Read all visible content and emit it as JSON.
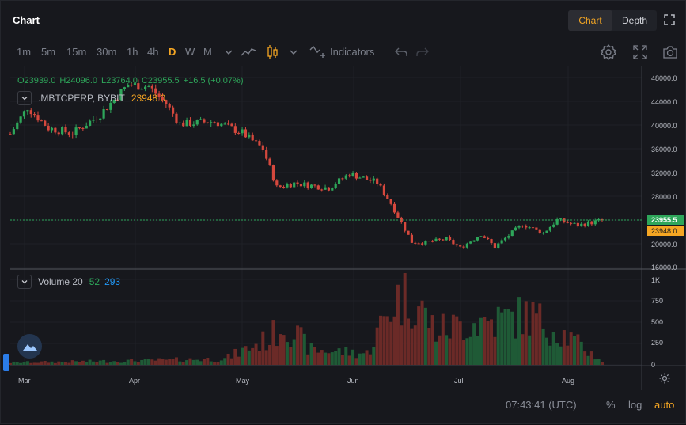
{
  "header": {
    "title": "Chart",
    "tabs": [
      "Chart",
      "Depth"
    ],
    "active_tab": "Chart"
  },
  "toolbar": {
    "timeframes": [
      "1m",
      "5m",
      "15m",
      "30m",
      "1h",
      "4h",
      "D",
      "W",
      "M"
    ],
    "active_timeframe": "D",
    "indicators_label": "Indicators",
    "icons": [
      "chevron-down-icon",
      "line-chart-icon",
      "candles-icon",
      "chevron-down-icon",
      "indicators-icon",
      "undo-icon",
      "redo-icon",
      "settings-icon",
      "fullscreen-icon",
      "camera-icon"
    ]
  },
  "legend": {
    "o": "O23939.0",
    "h": "H24096.0",
    "l": "L23764.0",
    "c": "C23955.5",
    "change": "+16.5 (+0.07%)",
    "symbol": ".MBTCPERP, BYBIT",
    "last": "23948.0"
  },
  "volume_legend": {
    "name": "Volume 20",
    "a": "52",
    "b": "293"
  },
  "price_axis": {
    "labels": [
      "48000.0",
      "44000.0",
      "40000.0",
      "36000.0",
      "32000.0",
      "28000.0",
      "20000.0",
      "16000.0"
    ],
    "badge_green": "23955.5",
    "badge_orange": "23948.0"
  },
  "volume_axis": {
    "labels": [
      "1K",
      "750",
      "500",
      "250",
      "0"
    ]
  },
  "time_axis": {
    "labels": [
      "Mar",
      "Apr",
      "May",
      "Jun",
      "Jul",
      "Aug"
    ]
  },
  "footer": {
    "clock": "07:43:41 (UTC)",
    "percent": "%",
    "log": "log",
    "auto": "auto"
  },
  "colors": {
    "up": "#2ea65a",
    "down": "#d5483d",
    "accent": "#f5a623",
    "blue": "#2196f3"
  },
  "chart_data": {
    "type": "candlestick",
    "x_range": [
      "Feb 22",
      "Aug 12"
    ],
    "y_range": [
      16000,
      49000
    ],
    "last_price": 23955.5,
    "anchors": [
      {
        "date": "Feb 22",
        "close": 38500
      },
      {
        "date": "Feb 27",
        "close": 43000
      },
      {
        "date": "Mar 05",
        "close": 39500
      },
      {
        "date": "Mar 12",
        "close": 38600
      },
      {
        "date": "Mar 20",
        "close": 41800
      },
      {
        "date": "Mar 28",
        "close": 46800
      },
      {
        "date": "Apr 03",
        "close": 46500
      },
      {
        "date": "Apr 08",
        "close": 43600
      },
      {
        "date": "Apr 12",
        "close": 40200
      },
      {
        "date": "Apr 22",
        "close": 40600
      },
      {
        "date": "Apr 30",
        "close": 38700
      },
      {
        "date": "May 06",
        "close": 36000
      },
      {
        "date": "May 10",
        "close": 29500
      },
      {
        "date": "May 15",
        "close": 30200
      },
      {
        "date": "May 25",
        "close": 29400
      },
      {
        "date": "May 31",
        "close": 31800
      },
      {
        "date": "Jun 08",
        "close": 30300
      },
      {
        "date": "Jun 12",
        "close": 26800
      },
      {
        "date": "Jun 18",
        "close": 20300
      },
      {
        "date": "Jun 22",
        "close": 20200
      },
      {
        "date": "Jun 28",
        "close": 20800
      },
      {
        "date": "Jul 02",
        "close": 19300
      },
      {
        "date": "Jul 08",
        "close": 21600
      },
      {
        "date": "Jul 12",
        "close": 19500
      },
      {
        "date": "Jul 20",
        "close": 23300
      },
      {
        "date": "Jul 26",
        "close": 21800
      },
      {
        "date": "Jul 30",
        "close": 24000
      },
      {
        "date": "Aug 05",
        "close": 23100
      },
      {
        "date": "Aug 12",
        "close": 23955
      }
    ],
    "volume_anchors_k": [
      {
        "date": "Feb 22",
        "v": 0.03
      },
      {
        "date": "Mar 25",
        "v": 0.05
      },
      {
        "date": "Apr 25",
        "v": 0.08
      },
      {
        "date": "May 08",
        "v": 0.35
      },
      {
        "date": "May 12",
        "v": 0.55
      },
      {
        "date": "May 20",
        "v": 0.2
      },
      {
        "date": "Jun 05",
        "v": 0.15
      },
      {
        "date": "Jun 13",
        "v": 0.85
      },
      {
        "date": "Jun 18",
        "v": 0.9
      },
      {
        "date": "Jun 25",
        "v": 0.45
      },
      {
        "date": "Jul 05",
        "v": 0.55
      },
      {
        "date": "Jul 15",
        "v": 0.6
      },
      {
        "date": "Jul 22",
        "v": 0.65
      },
      {
        "date": "Aug 01",
        "v": 0.4
      },
      {
        "date": "Aug 12",
        "v": 0.05
      }
    ]
  }
}
